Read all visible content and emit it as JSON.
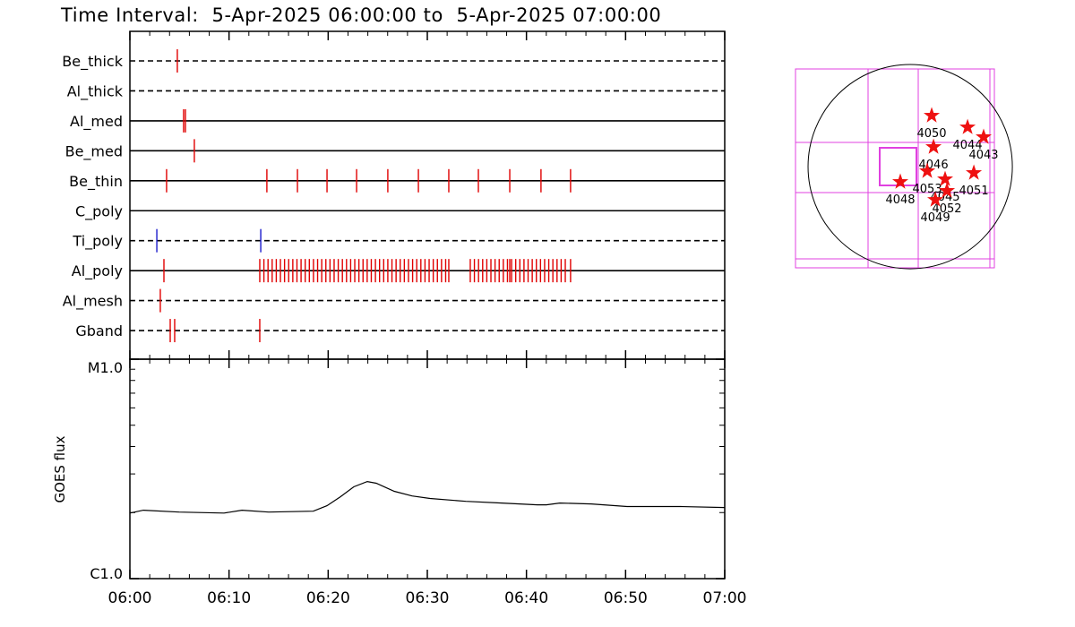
{
  "chart_data": [
    {
      "type": "timeline",
      "title": "Time Interval:  5-Apr-2025 06:00:00 to  5-Apr-2025 07:00:00",
      "xlim": [
        "06:00:00",
        "07:00:00"
      ],
      "rows": [
        {
          "name": "Be_thick",
          "line": "dashed",
          "color": "#e00000",
          "events": [
            "06:04:47"
          ]
        },
        {
          "name": "Al_thick",
          "line": "dashed",
          "color": "#e00000",
          "events": []
        },
        {
          "name": "Al_med",
          "line": "solid",
          "color": "#e00000",
          "events": [
            "06:05:25",
            "06:05:36"
          ]
        },
        {
          "name": "Be_med",
          "line": "solid",
          "color": "#e00000",
          "events": [
            "06:06:30"
          ]
        },
        {
          "name": "Be_thin",
          "line": "solid",
          "color": "#e00000",
          "events": [
            "06:03:42",
            "06:13:49",
            "06:16:54",
            "06:19:53",
            "06:22:52",
            "06:26:01",
            "06:29:06",
            "06:32:10",
            "06:35:09",
            "06:38:19",
            "06:41:28",
            "06:44:27"
          ]
        },
        {
          "name": "C_poly",
          "line": "solid",
          "color": "#e00000",
          "events": []
        },
        {
          "name": "Ti_poly",
          "line": "dashed",
          "color": "#1a1acc",
          "events": [
            "06:02:43",
            "06:13:12"
          ]
        },
        {
          "name": "Al_poly",
          "line": "solid",
          "color": "#e00000",
          "events": [
            "06:03:26",
            "06:13:06",
            "06:13:31",
            "06:13:56",
            "06:14:21",
            "06:14:46",
            "06:15:11",
            "06:15:36",
            "06:16:01",
            "06:16:26",
            "06:16:51",
            "06:17:16",
            "06:17:41",
            "06:18:06",
            "06:18:31",
            "06:18:56",
            "06:19:21",
            "06:19:46",
            "06:20:11",
            "06:20:36",
            "06:21:01",
            "06:21:26",
            "06:21:51",
            "06:22:16",
            "06:22:41",
            "06:23:06",
            "06:23:31",
            "06:23:56",
            "06:24:21",
            "06:24:46",
            "06:25:11",
            "06:25:36",
            "06:26:01",
            "06:26:26",
            "06:26:51",
            "06:27:16",
            "06:27:41",
            "06:28:06",
            "06:28:31",
            "06:28:56",
            "06:29:21",
            "06:29:46",
            "06:30:11",
            "06:30:36",
            "06:31:01",
            "06:31:26",
            "06:31:51",
            "06:32:10",
            "06:34:20",
            "06:34:45",
            "06:35:10",
            "06:35:35",
            "06:36:00",
            "06:36:25",
            "06:36:50",
            "06:37:15",
            "06:37:40",
            "06:38:05",
            "06:38:19",
            "06:38:30",
            "06:38:55",
            "06:39:20",
            "06:39:45",
            "06:40:10",
            "06:40:35",
            "06:41:00",
            "06:41:25",
            "06:41:50",
            "06:42:15",
            "06:42:40",
            "06:43:05",
            "06:43:30",
            "06:43:55",
            "06:44:27"
          ]
        },
        {
          "name": "Al_mesh",
          "line": "dashed",
          "color": "#e00000",
          "events": [
            "06:03:04"
          ]
        },
        {
          "name": "Gband",
          "line": "dashed",
          "color": "#e00000",
          "events": [
            "06:04:04",
            "06:04:31",
            "06:13:06"
          ]
        }
      ]
    },
    {
      "type": "line",
      "ylabel": "GOES flux",
      "log_scale": true,
      "color": "#000000",
      "xlim": [
        "06:00",
        "07:00"
      ],
      "xticks": [
        "06:00",
        "06:10",
        "06:20",
        "06:30",
        "06:40",
        "06:50",
        "07:00"
      ],
      "minor_xticks": [
        "06:02",
        "06:04",
        "06:06",
        "06:08",
        "06:12",
        "06:14",
        "06:16",
        "06:18",
        "06:22",
        "06:24",
        "06:26",
        "06:28",
        "06:32",
        "06:34",
        "06:36",
        "06:38",
        "06:42",
        "06:44",
        "06:46",
        "06:48",
        "06:52",
        "06:54",
        "06:56",
        "06:58"
      ],
      "ylim": [
        1e-06,
        1e-05
      ],
      "yticks": [
        {
          "value": 1e-06,
          "label": "C1.0"
        },
        {
          "value": 1e-05,
          "label": "M1.0"
        }
      ],
      "minor_yticks": [
        2e-06,
        3e-06,
        4e-06,
        5e-06,
        6e-06,
        7e-06,
        8e-06,
        9e-06
      ],
      "x": [
        "06:00:00",
        "06:01:22",
        "06:04:58",
        "06:09:30",
        "06:11:18",
        "06:14:00",
        "06:18:30",
        "06:19:53",
        "06:21:14",
        "06:22:35",
        "06:23:57",
        "06:24:51",
        "06:26:40",
        "06:28:28",
        "06:30:16",
        "06:33:53",
        "06:37:30",
        "06:41:07",
        "06:42:00",
        "06:43:22",
        "06:46:32",
        "06:50:09",
        "06:55:34",
        "07:00:00"
      ],
      "values": [
        1.99e-06,
        2.05e-06,
        2.01e-06,
        1.99e-06,
        2.05e-06,
        2.01e-06,
        2.03e-06,
        2.15e-06,
        2.36e-06,
        2.62e-06,
        2.77e-06,
        2.72e-06,
        2.5e-06,
        2.38e-06,
        2.32e-06,
        2.25e-06,
        2.21e-06,
        2.17e-06,
        2.17e-06,
        2.21e-06,
        2.19e-06,
        2.13e-06,
        2.13e-06,
        2.11e-06
      ]
    },
    {
      "type": "map",
      "xlim": [
        -1078,
        791
      ],
      "ylim": [
        -951,
        918
      ],
      "radius": 960,
      "color": "#ee1111",
      "frame_color": "#e040e0",
      "points": [
        {
          "label": "4050",
          "x": 202,
          "y": 480
        },
        {
          "label": "4044",
          "x": 539,
          "y": 370
        },
        {
          "label": "4043",
          "x": 690,
          "y": 278
        },
        {
          "label": "4046",
          "x": 219,
          "y": 185
        },
        {
          "label": "4053",
          "x": 160,
          "y": -42
        },
        {
          "label": "4045",
          "x": 328,
          "y": -118
        },
        {
          "label": "4051",
          "x": 598,
          "y": -59
        },
        {
          "label": "4048",
          "x": -93,
          "y": -143
        },
        {
          "label": "4052",
          "x": 345,
          "y": -227
        },
        {
          "label": "4049",
          "x": 236,
          "y": -312
        }
      ]
    }
  ]
}
